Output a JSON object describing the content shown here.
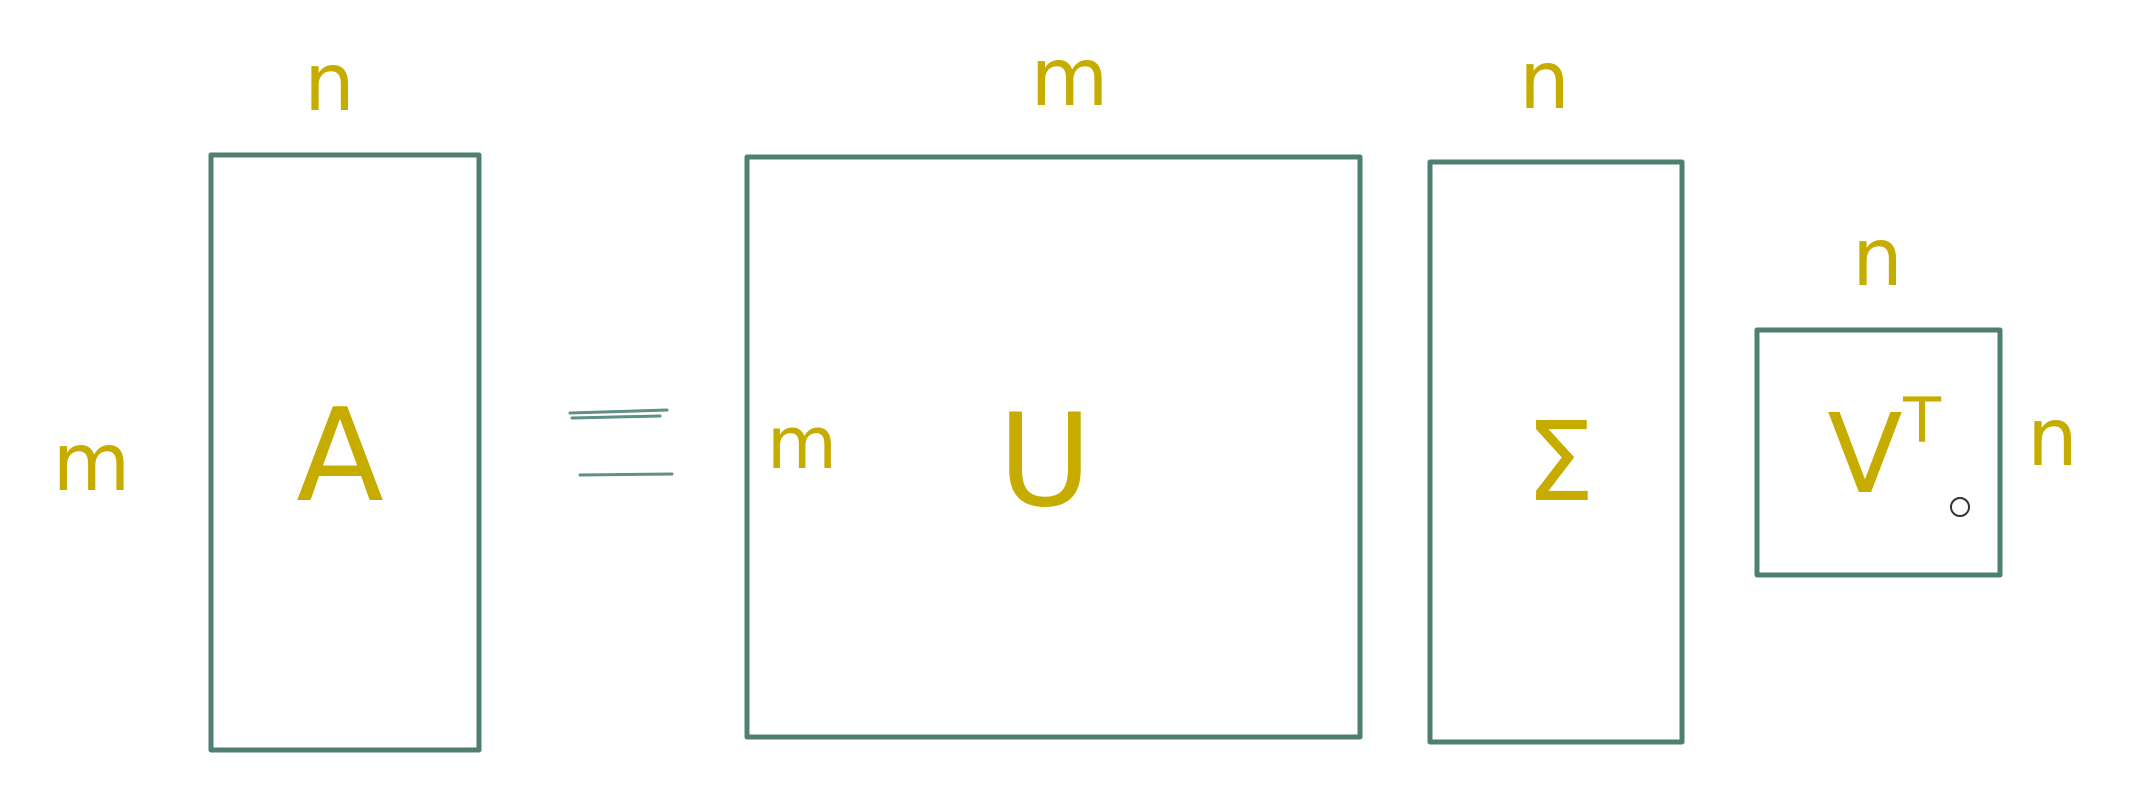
{
  "colors": {
    "matrix_stroke": "#4f7f73",
    "handwriting": "#c7ac00",
    "equals_stroke": "#5f8f86",
    "background": "#ffffff"
  },
  "labels": {
    "a_cols": "n",
    "a_rows": "m",
    "a_symbol": "A",
    "equals": "=",
    "u_cols": "m",
    "u_rows": "m",
    "u_symbol": "U",
    "sigma_cols": "n",
    "sigma_symbol": "Σ",
    "vt_cols": "n",
    "vt_rows": "n",
    "vt_symbol": "V",
    "vt_superscript": "T"
  },
  "cursor": {
    "icon": "pen-cursor-icon"
  }
}
